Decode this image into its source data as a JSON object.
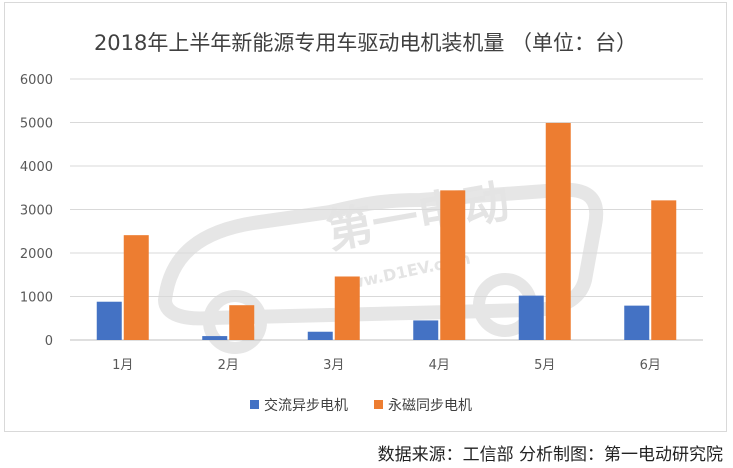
{
  "chart_data": {
    "type": "bar",
    "title": "2018年上半年新能源专用车驱动电机装机量 （单位：台）",
    "categories": [
      "1月",
      "2月",
      "3月",
      "4月",
      "5月",
      "6月"
    ],
    "series": [
      {
        "name": "交流异步电机",
        "values": [
          880,
          90,
          190,
          450,
          1020,
          790
        ],
        "color": "#4472c4"
      },
      {
        "name": "永磁同步电机",
        "values": [
          2410,
          800,
          1460,
          3440,
          4990,
          3210
        ],
        "color": "#ed7d31"
      }
    ],
    "y_ticks": [
      "0",
      "1000",
      "2000",
      "3000",
      "4000",
      "5000",
      "6000"
    ],
    "ylim": [
      0,
      6000
    ],
    "grid": true,
    "legend_position": "bottom"
  },
  "watermark": {
    "text": "www.D1EV.com",
    "logo_text": "第一电动"
  },
  "source": "数据来源：工信部  分析制图：第一电动研究院"
}
